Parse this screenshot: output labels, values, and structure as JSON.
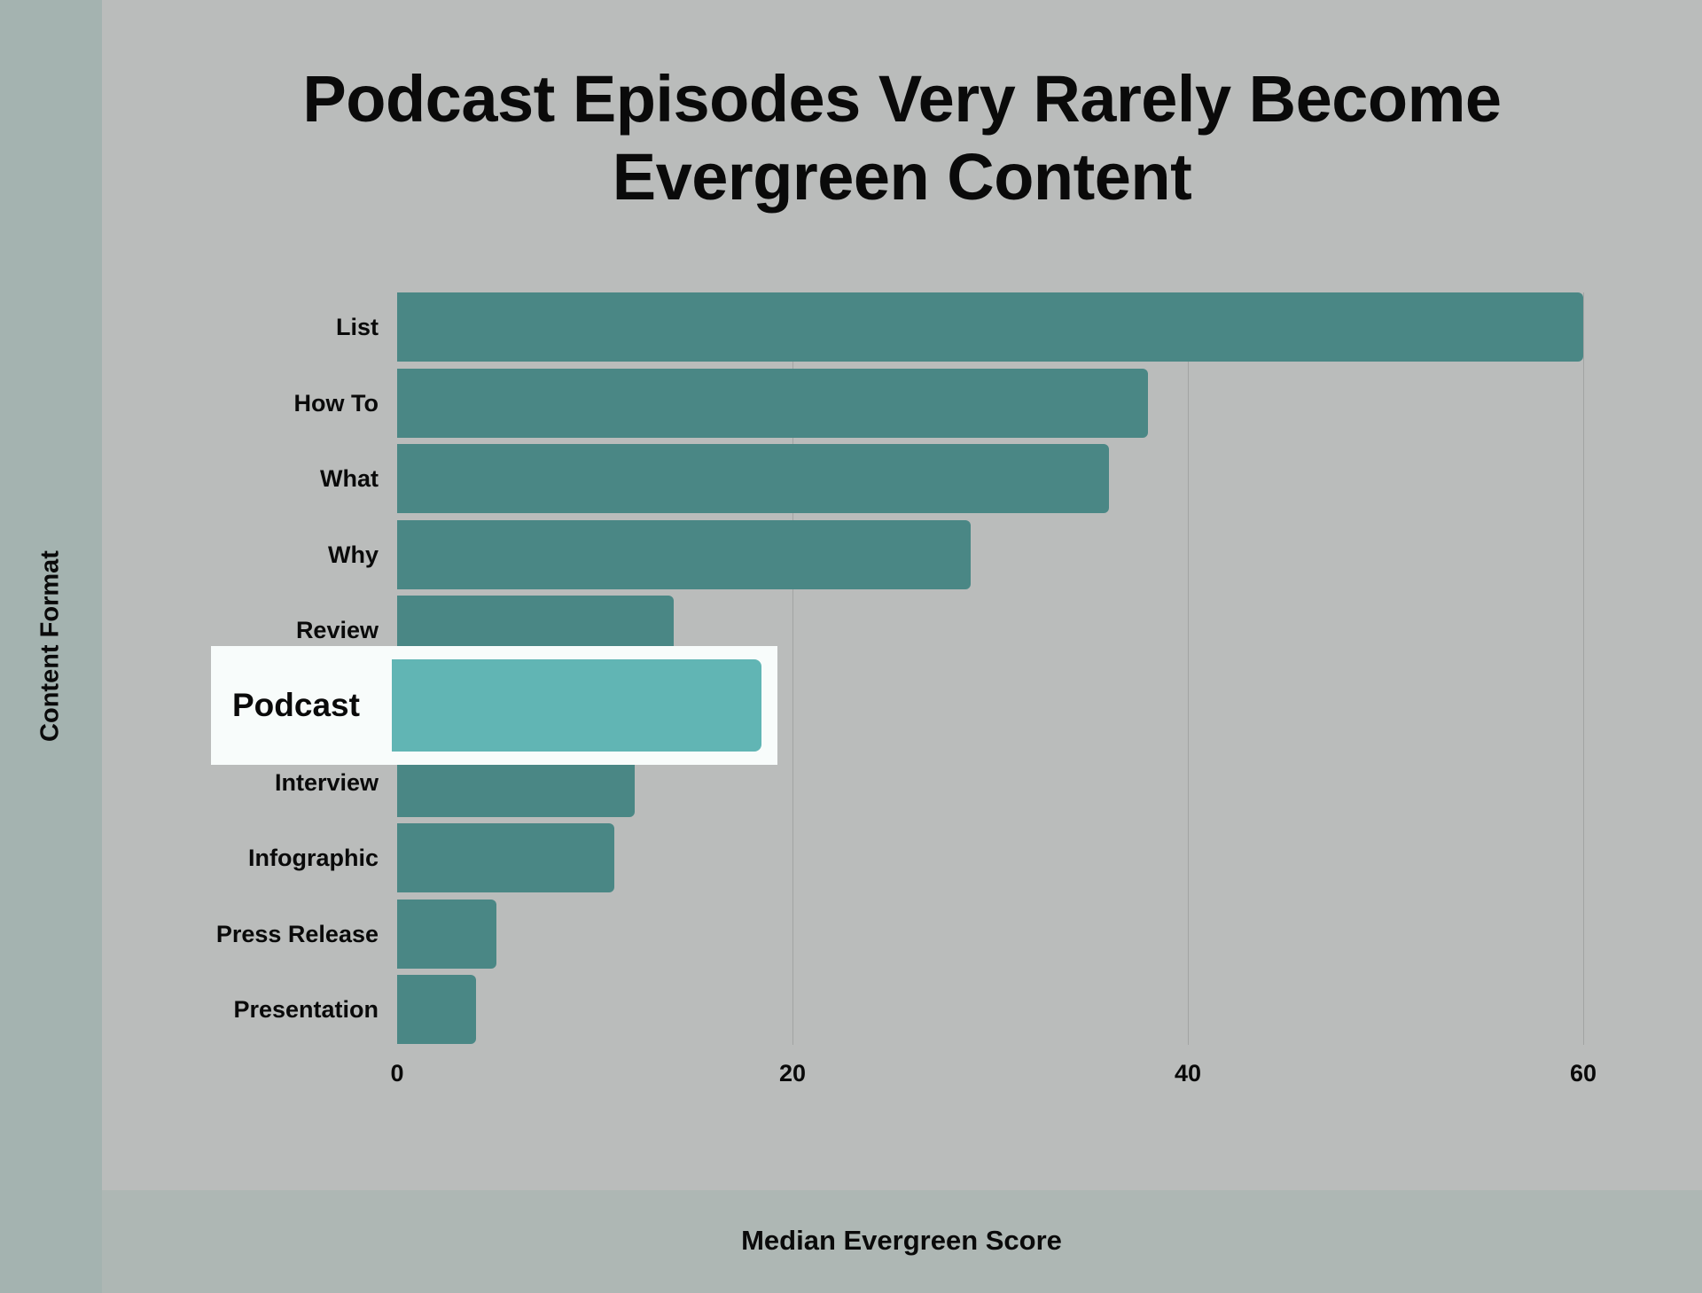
{
  "title": {
    "line1": "Podcast Episodes Very Rarely Become",
    "line2": "Evergreen Content"
  },
  "axes": {
    "ylabel": "Content Format",
    "xlabel": "Median Evergreen Score",
    "x_ticks": [
      "0",
      "20",
      "40",
      "60"
    ]
  },
  "categories": [
    {
      "label": "List",
      "value": 60
    },
    {
      "label": "How To",
      "value": 38
    },
    {
      "label": "What",
      "value": 36
    },
    {
      "label": "Why",
      "value": 29
    },
    {
      "label": "Review",
      "value": 14
    },
    {
      "label": "Podcast",
      "value": 13
    },
    {
      "label": "Interview",
      "value": 12
    },
    {
      "label": "Infographic",
      "value": 11
    },
    {
      "label": "Press Release",
      "value": 5
    },
    {
      "label": "Presentation",
      "value": 4
    }
  ],
  "highlight": {
    "label": "Podcast",
    "color": "#61b5b4"
  },
  "colors": {
    "bar": "#4a8785",
    "highlight_bar": "#61b5b4",
    "background": "#babcbb",
    "sidebar": "#a4b3b0",
    "bottom_band": "#aeb7b4",
    "callout_bg": "#f8fcfb"
  },
  "chart_data": {
    "type": "bar",
    "orientation": "horizontal",
    "title": "Podcast Episodes Very Rarely Become Evergreen Content",
    "xlabel": "Median Evergreen Score",
    "ylabel": "Content Format",
    "categories": [
      "List",
      "How To",
      "What",
      "Why",
      "Review",
      "Podcast",
      "Interview",
      "Infographic",
      "Press Release",
      "Presentation"
    ],
    "values": [
      60,
      38,
      36,
      29,
      14,
      13,
      12,
      11,
      5,
      4
    ],
    "xlim": [
      0,
      60
    ],
    "x_ticks": [
      0,
      20,
      40,
      60
    ],
    "grid": "vertical gridlines at 20, 40, 60",
    "legend": null,
    "annotations": [
      "Podcast bar highlighted in magnified callout box (lighter teal)"
    ]
  }
}
